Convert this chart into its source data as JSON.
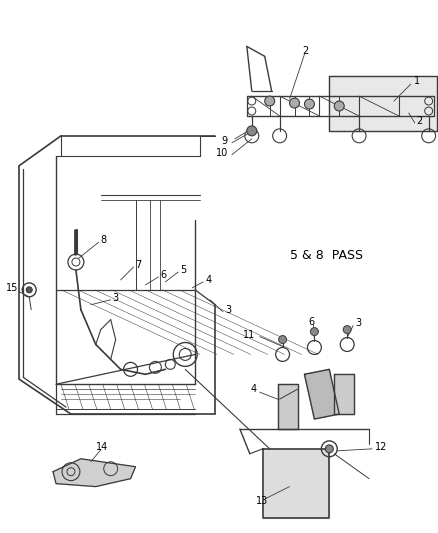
{
  "background_color": "#ffffff",
  "line_color": "#3a3a3a",
  "text_color": "#000000",
  "fig_width": 4.39,
  "fig_height": 5.33,
  "dpi": 100,
  "label_5_8_pass": "5 & 8  PASS"
}
